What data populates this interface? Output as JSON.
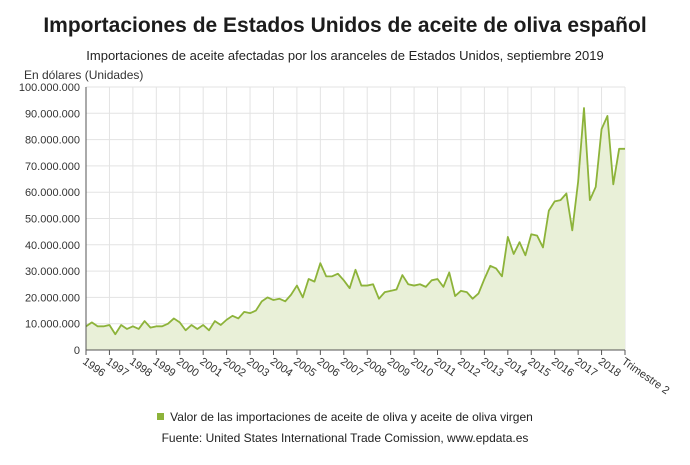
{
  "title": "Importaciones de Estados Unidos de aceite de oliva español",
  "subtitle": "Importaciones de aceite afectadas por los aranceles de Estados Unidos, septiembre 2019",
  "unit_label": "En dólares (Unidades)",
  "legend_label": "Valor de las importaciones de aceite de oliva y aceite de oliva virgen",
  "source": "Fuente: United States International Trade Comission, www.epdata.es",
  "colors": {
    "line": "#8db33a",
    "fill": "#e9f0d8",
    "grid": "#e3e3e3",
    "axis": "#555555"
  },
  "chart_data": {
    "type": "area",
    "title": "Importaciones de Estados Unidos de aceite de oliva español",
    "ylabel": "En dólares (Unidades)",
    "xlabel": "Trimestre",
    "ylim": [
      0,
      100000000
    ],
    "yticks": [
      0,
      10000000,
      20000000,
      30000000,
      40000000,
      50000000,
      60000000,
      70000000,
      80000000,
      90000000,
      100000000
    ],
    "ytick_labels": [
      "0",
      "10.000.000",
      "20.000.000",
      "30.000.000",
      "40.000.000",
      "50.000.000",
      "60.000.000",
      "70.000.000",
      "80.000.000",
      "90.000.000",
      "100.000.000"
    ],
    "xtick_labels": [
      "1996",
      "1997",
      "1998",
      "1999",
      "2000",
      "2001",
      "2002",
      "2003",
      "2004",
      "2005",
      "2006",
      "2007",
      "2008",
      "2009",
      "2010",
      "2011",
      "2012",
      "2013",
      "2014",
      "2015",
      "2016",
      "2017",
      "2018",
      "Trimestre 2"
    ],
    "grid": true,
    "legend": "bottom",
    "series": [
      {
        "name": "Valor de las importaciones de aceite de oliva y aceite de oliva virgen",
        "values": [
          9000000,
          10500000,
          9000000,
          9000000,
          9500000,
          6000000,
          9500000,
          8000000,
          9000000,
          8000000,
          11000000,
          8500000,
          9000000,
          9000000,
          10000000,
          12000000,
          10500000,
          7500000,
          9500000,
          8000000,
          9500000,
          7500000,
          11000000,
          9500000,
          11500000,
          13000000,
          12000000,
          14500000,
          14000000,
          15000000,
          18500000,
          20000000,
          19000000,
          19500000,
          18500000,
          21000000,
          24500000,
          20000000,
          27000000,
          26000000,
          33000000,
          28000000,
          28000000,
          29000000,
          26500000,
          23500000,
          30500000,
          24500000,
          24500000,
          25000000,
          19500000,
          22000000,
          22500000,
          23000000,
          28500000,
          25000000,
          24500000,
          25000000,
          24000000,
          26500000,
          27000000,
          24000000,
          29500000,
          20500000,
          22500000,
          22000000,
          19500000,
          21500000,
          27000000,
          32000000,
          31000000,
          28000000,
          43000000,
          36500000,
          41000000,
          36000000,
          44000000,
          43500000,
          39000000,
          53000000,
          56500000,
          57000000,
          59500000,
          45500000,
          64000000,
          92000000,
          57000000,
          62000000,
          84000000,
          89000000,
          63000000,
          76500000,
          76500000
        ]
      }
    ]
  }
}
